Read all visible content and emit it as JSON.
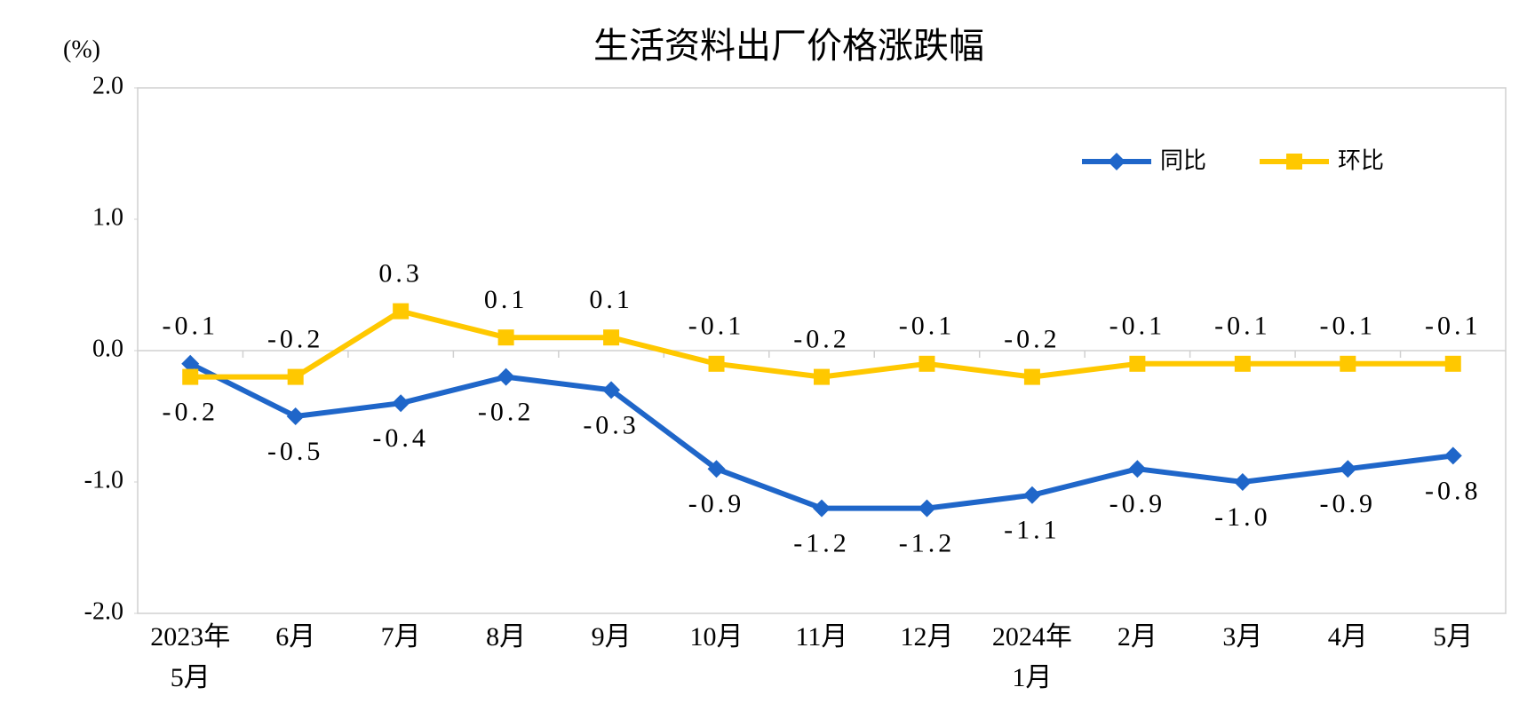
{
  "chart_data": {
    "type": "line",
    "title": "生活资料出厂价格涨跌幅",
    "y_label": "(%)",
    "categories": [
      "2023年\n5月",
      "6月",
      "7月",
      "8月",
      "9月",
      "10月",
      "11月",
      "12月",
      "2024年\n1月",
      "2月",
      "3月",
      "4月",
      "5月"
    ],
    "series": [
      {
        "name": "同比",
        "color": "#1f66c9",
        "marker": "diamond",
        "values": [
          -0.1,
          -0.5,
          -0.4,
          -0.2,
          -0.3,
          -0.9,
          -1.2,
          -1.2,
          -1.1,
          -0.9,
          -1.0,
          -0.9,
          -0.8
        ],
        "value_labels": [
          "-0.1",
          "-0.5",
          "-0.4",
          "-0.2",
          "-0.3",
          "-0.9",
          "-1.2",
          "-1.2",
          "-1.1",
          "-0.9",
          "-1.0",
          "-0.9",
          "-0.8"
        ]
      },
      {
        "name": "环比",
        "color": "#ffc800",
        "marker": "square",
        "values": [
          -0.2,
          -0.2,
          0.3,
          0.1,
          0.1,
          -0.1,
          -0.2,
          -0.1,
          -0.2,
          -0.1,
          -0.1,
          -0.1,
          -0.1
        ],
        "value_labels": [
          "-0.2",
          "-0.2",
          "0.3",
          "0.1",
          "0.1",
          "-0.1",
          "-0.2",
          "-0.1",
          "-0.2",
          "-0.1",
          "-0.1",
          "-0.1",
          "-0.1"
        ]
      }
    ],
    "ylim": [
      -2,
      2
    ],
    "yticks": [
      {
        "value": 2,
        "label": "2.0"
      },
      {
        "value": 1,
        "label": "1.0"
      },
      {
        "value": 0,
        "label": "0.0"
      },
      {
        "value": -1,
        "label": "-1.0"
      },
      {
        "value": -2,
        "label": "-2.0"
      }
    ],
    "grid": false,
    "legend": "upper right"
  }
}
